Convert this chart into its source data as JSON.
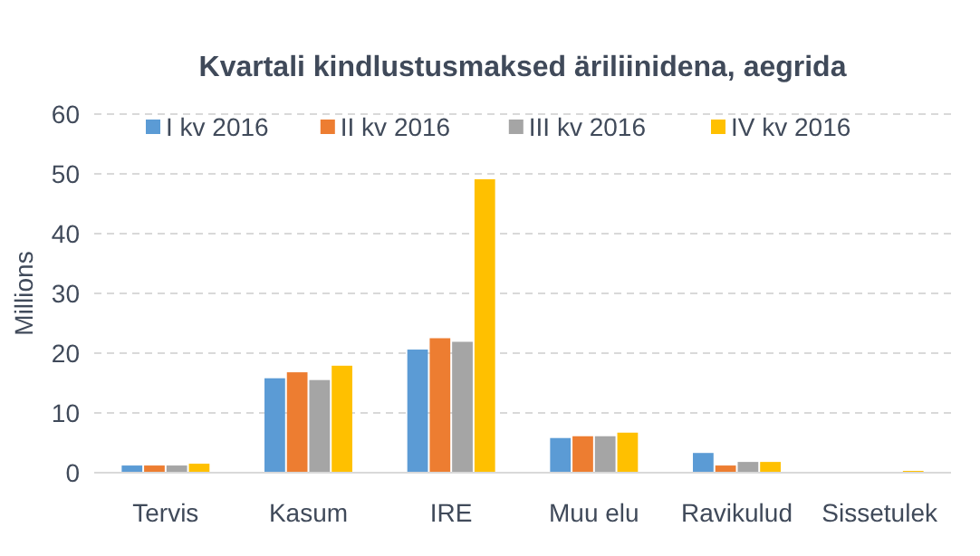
{
  "chart_data": {
    "type": "bar",
    "title": "Kvartali kindlustusmaksed äriliinidena, aegrida",
    "ylabel": "Millions",
    "categories": [
      "Tervis",
      "Kasum",
      "IRE",
      "Muu elu",
      "Ravikulud",
      "Sissetulek"
    ],
    "series": [
      {
        "name": "I kv 2016",
        "color": "#5b9bd5",
        "values": [
          1.2,
          15.8,
          20.6,
          5.8,
          3.3,
          0
        ]
      },
      {
        "name": "II kv 2016",
        "color": "#ed7d31",
        "values": [
          1.2,
          16.8,
          22.5,
          6.1,
          1.2,
          0
        ]
      },
      {
        "name": "III kv 2016",
        "color": "#a5a5a5",
        "values": [
          1.2,
          15.5,
          21.9,
          6.1,
          1.8,
          0
        ]
      },
      {
        "name": "IV kv 2016",
        "color": "#ffc000",
        "values": [
          1.5,
          17.9,
          49.1,
          6.7,
          1.8,
          0.3
        ]
      }
    ],
    "ylim": [
      0,
      60
    ],
    "yticks": [
      0,
      10,
      20,
      30,
      40,
      50,
      60
    ],
    "grid": "y",
    "legend": "top"
  }
}
